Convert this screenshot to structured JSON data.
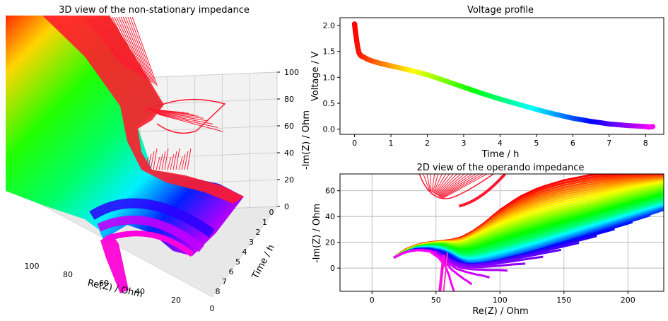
{
  "chart_data": [
    {
      "type": "surface3d",
      "title": "3D view of the non-stationary impedance",
      "xlabel": "Re(Z) / Ohm",
      "ylabel": "Time / h",
      "zlabel": "-Im(Z) / Ohm",
      "xticks": [
        "100",
        "80",
        "60",
        "40",
        "20",
        "0"
      ],
      "yticks": [
        "0",
        "1",
        "2",
        "3",
        "4",
        "5",
        "6",
        "7",
        "8"
      ],
      "zticks": [
        "0",
        "20",
        "40",
        "60",
        "80",
        "100"
      ],
      "xlim": [
        0,
        100
      ],
      "ylim": [
        0,
        8.2
      ],
      "zlim": [
        0,
        100
      ],
      "colormap": "hsv"
    },
    {
      "type": "scatter",
      "title": "Voltage profile",
      "xlabel": "Time / h",
      "ylabel": "Voltage / V",
      "xticks": [
        "0",
        "1",
        "2",
        "3",
        "4",
        "5",
        "6",
        "7",
        "8"
      ],
      "yticks": [
        "0.0",
        "0.5",
        "1.0",
        "1.5",
        "2.0"
      ],
      "xlim": [
        -0.4,
        8.5
      ],
      "ylim": [
        -0.1,
        2.15
      ],
      "x": [
        0,
        0.02,
        0.05,
        0.08,
        0.12,
        0.18,
        0.25,
        0.35,
        0.5,
        0.75,
        1.0,
        1.5,
        2.0,
        2.5,
        3.0,
        3.5,
        4.0,
        4.5,
        5.0,
        5.5,
        6.0,
        6.5,
        7.0,
        7.5,
        8.0,
        8.1,
        8.2
      ],
      "y": [
        2.03,
        1.9,
        1.75,
        1.6,
        1.47,
        1.41,
        1.39,
        1.35,
        1.31,
        1.26,
        1.22,
        1.14,
        1.05,
        0.93,
        0.81,
        0.69,
        0.58,
        0.48,
        0.38,
        0.29,
        0.21,
        0.15,
        0.1,
        0.07,
        0.05,
        0.04,
        0.05
      ],
      "colormap": "hsv"
    },
    {
      "type": "line",
      "title": "2D view of the operando impedance",
      "xlabel": "Re(Z) / Ohm",
      "ylabel": "-Im(Z) / Ohm",
      "xticks": [
        "0",
        "50",
        "100",
        "150",
        "200"
      ],
      "yticks": [
        "0",
        "20",
        "40",
        "60"
      ],
      "xlim": [
        -25,
        228
      ],
      "ylim": [
        -18,
        73
      ],
      "colormap": "hsv",
      "curves": [
        {
          "t": 0.0,
          "re": [
            17,
            25,
            35,
            45,
            55,
            63,
            70,
            78,
            88,
            100,
            115,
            130,
            150,
            175,
            200,
            228
          ],
          "im": [
            8,
            14,
            18,
            20,
            21,
            22,
            24,
            28,
            35,
            45,
            55,
            62,
            68,
            73,
            73,
            73
          ]
        },
        {
          "t": 2.0,
          "re": [
            17,
            25,
            35,
            45,
            55,
            62,
            68,
            75,
            85,
            100,
            120,
            145,
            175,
            205,
            228
          ],
          "im": [
            8,
            13,
            17,
            19,
            20,
            19,
            19,
            21,
            25,
            31,
            38,
            45,
            52,
            60,
            65
          ]
        },
        {
          "t": 4.0,
          "re": [
            17,
            25,
            35,
            45,
            55,
            62,
            68,
            75,
            85,
            100,
            125,
            155,
            190,
            228
          ],
          "im": [
            8,
            12,
            16,
            17,
            16,
            13,
            10,
            9,
            11,
            15,
            22,
            31,
            41,
            52
          ]
        },
        {
          "t": 6.0,
          "re": [
            17,
            25,
            35,
            45,
            55,
            62,
            68,
            75,
            85,
            100,
            130,
            165,
            200,
            228
          ],
          "im": [
            8,
            12,
            15,
            15,
            13,
            10,
            6,
            3,
            3,
            6,
            14,
            25,
            36,
            45
          ]
        },
        {
          "t": 8.0,
          "re": [
            17,
            25,
            35,
            45,
            52,
            57,
            60,
            62,
            64
          ],
          "im": [
            8,
            12,
            14,
            13,
            8,
            2,
            -5,
            -12,
            -18
          ]
        }
      ]
    }
  ]
}
